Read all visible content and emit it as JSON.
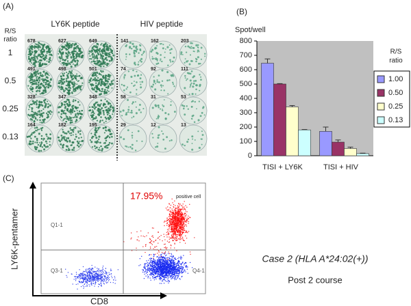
{
  "panel_a": {
    "label": "(A)",
    "left_header": "LY6K peptide",
    "right_header": "HIV peptide",
    "ratio_title": [
      "R/S",
      "ratio"
    ],
    "rows": [
      {
        "ratio": "1",
        "counts": [
          "678",
          "627",
          "649",
          "141",
          "162",
          "203"
        ]
      },
      {
        "ratio": "0.5",
        "counts": [
          "491",
          "498",
          "501",
          "74",
          "92",
          "111"
        ]
      },
      {
        "ratio": "0.25",
        "counts": [
          "328",
          "347",
          "348",
          "58",
          "31",
          "53"
        ]
      },
      {
        "ratio": "0.13",
        "counts": [
          "164",
          "182",
          "195",
          "29",
          "12",
          "13"
        ]
      }
    ]
  },
  "chart_data": {
    "type": "bar",
    "label": "(B)",
    "y_label": "Spot/well",
    "legend_title": [
      "R/S",
      "ratio"
    ],
    "legend": "right",
    "plot_bg": "#c0c0c0",
    "categories": [
      "TISI + LY6K",
      "TISI + HIV"
    ],
    "series": [
      {
        "name": "1.00",
        "color": "#9999ff",
        "values": [
          645,
          170
        ],
        "errors": [
          30,
          30
        ]
      },
      {
        "name": "0.50",
        "color": "#993366",
        "values": [
          500,
          95
        ],
        "errors": [
          3,
          15
        ]
      },
      {
        "name": "0.25",
        "color": "#ffffcc",
        "values": [
          340,
          50
        ],
        "errors": [
          10,
          10
        ]
      },
      {
        "name": "0.13",
        "color": "#ccffff",
        "values": [
          180,
          15
        ],
        "errors": [
          3,
          3
        ]
      }
    ],
    "ylim": [
      0,
      800
    ],
    "yticks": [
      0,
      100,
      200,
      300,
      400,
      500,
      600,
      700,
      800
    ]
  },
  "panel_c": {
    "label": "(C)",
    "percent": "17.95%",
    "positive_label": "positive cell",
    "q1": "Q1-1",
    "q3": "Q3-1",
    "q4": "Q4-1",
    "y_label": "LY6K-pentamer",
    "x_label": "CD8"
  },
  "caption": {
    "case": "Case 2 (HLA A*24:02(+))",
    "course": "Post 2 course"
  }
}
